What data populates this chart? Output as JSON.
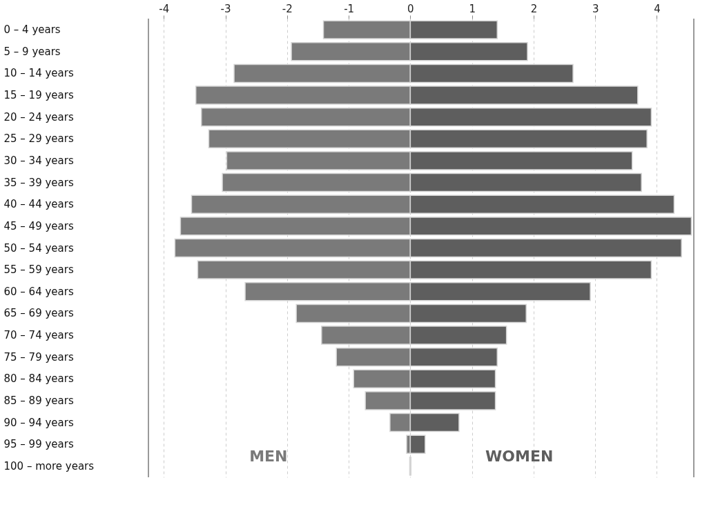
{
  "chart_data": {
    "type": "bar",
    "orientation": "horizontal",
    "categories": [
      "0 – 4 years",
      "5 – 9 years",
      "10 – 14 years",
      "15 – 19 years",
      "20 – 24 years",
      "25 – 29 years",
      "30 – 34 years",
      "35 – 39 years",
      "40 – 44 years",
      "45 – 49 years",
      "50 – 54 years",
      "55 – 59 years",
      "60 – 64 years",
      "65 – 69 years",
      "70 – 74 years",
      "75 – 79 years",
      "80 – 84 years",
      "85 – 89 years",
      "90 – 94 years",
      "95 – 99 years",
      "100 – more years"
    ],
    "series": [
      {
        "name": "MEN",
        "color": "#7a7a7a",
        "values": [
          -1.41,
          -1.93,
          -2.86,
          -3.48,
          -3.39,
          -3.27,
          -2.98,
          -3.05,
          -3.55,
          -3.73,
          -3.82,
          -3.45,
          -2.68,
          -1.85,
          -1.44,
          -1.2,
          -0.92,
          -0.73,
          -0.33,
          -0.06,
          -0.01
        ]
      },
      {
        "name": "WOMEN",
        "color": "#5e5e5e",
        "values": [
          1.41,
          1.9,
          2.64,
          3.69,
          3.91,
          3.84,
          3.6,
          3.75,
          4.28,
          4.56,
          4.4,
          3.91,
          2.92,
          1.88,
          1.56,
          1.41,
          1.38,
          1.38,
          0.79,
          0.24,
          0.01
        ]
      }
    ],
    "stacked": true,
    "xlim": [
      -4.25,
      4.6
    ],
    "xticks": [
      -4,
      -3,
      -2,
      -1,
      0,
      1,
      2,
      3,
      4
    ],
    "grid": "x",
    "legend": false
  }
}
